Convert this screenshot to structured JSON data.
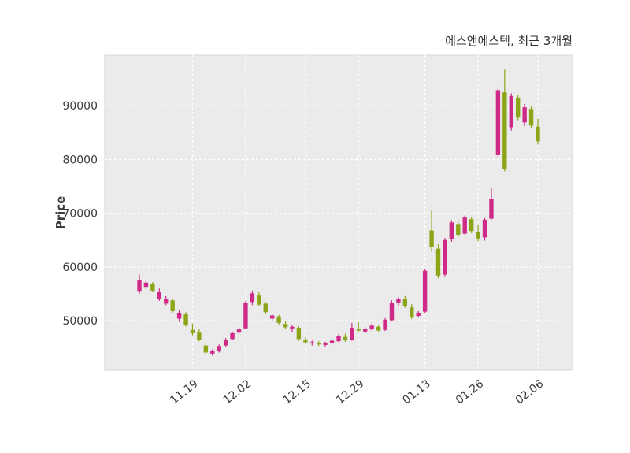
{
  "header": {
    "title": "에스앤에스텍, 최근 3개월"
  },
  "chart_data": {
    "type": "candlestick",
    "title": "에스앤에스텍, 최근 3개월",
    "ylabel": "Price",
    "xlabel": "",
    "yticks": [
      50000,
      60000,
      70000,
      80000,
      90000
    ],
    "ylim": [
      40800,
      99400
    ],
    "xtick_labels": [
      "11.19",
      "12.02",
      "12.15",
      "12.29",
      "01.13",
      "01.26",
      "02.06"
    ],
    "xtick_indices": [
      8,
      16,
      25,
      33,
      43,
      51,
      60
    ],
    "grid": true,
    "legend_position": "none",
    "colors": {
      "up": "#d02a88",
      "down": "#8aa617",
      "panel": "#ebebeb",
      "grid": "#ffffff",
      "text": "#3a3a3a",
      "border": "#d7d7d7"
    },
    "candles_format": [
      "open",
      "high",
      "low",
      "close"
    ],
    "candles": [
      [
        55400,
        58600,
        55000,
        57600
      ],
      [
        56300,
        57600,
        55900,
        57100
      ],
      [
        56900,
        57200,
        55300,
        55600
      ],
      [
        54000,
        56000,
        53700,
        55300
      ],
      [
        53200,
        54600,
        52900,
        54100
      ],
      [
        53800,
        54200,
        51500,
        51800
      ],
      [
        50400,
        52000,
        49800,
        51500
      ],
      [
        51300,
        51600,
        48900,
        49200
      ],
      [
        48300,
        49500,
        47300,
        47700
      ],
      [
        47800,
        48400,
        46200,
        46500
      ],
      [
        45400,
        46000,
        43800,
        44100
      ],
      [
        43900,
        44700,
        43500,
        44400
      ],
      [
        44300,
        45600,
        44100,
        45300
      ],
      [
        45400,
        46800,
        45200,
        46500
      ],
      [
        46600,
        48000,
        46400,
        47700
      ],
      [
        47800,
        48700,
        47500,
        48400
      ],
      [
        48600,
        53700,
        48400,
        53300
      ],
      [
        53500,
        55600,
        52900,
        55100
      ],
      [
        54700,
        55300,
        52700,
        53000
      ],
      [
        53200,
        53500,
        51300,
        51600
      ],
      [
        50400,
        51300,
        50000,
        51000
      ],
      [
        50800,
        51100,
        49300,
        49600
      ],
      [
        49400,
        50000,
        48500,
        48800
      ],
      [
        48600,
        49200,
        47900,
        48900
      ],
      [
        48700,
        49000,
        46300,
        46600
      ],
      [
        46400,
        46900,
        45700,
        46000
      ],
      [
        45800,
        46300,
        45400,
        46000
      ],
      [
        45900,
        46200,
        45300,
        45600
      ],
      [
        45500,
        46100,
        45200,
        45900
      ],
      [
        45800,
        46600,
        45600,
        46300
      ],
      [
        46200,
        47500,
        46000,
        47200
      ],
      [
        47000,
        47600,
        46100,
        46400
      ],
      [
        46500,
        49600,
        46300,
        48700
      ],
      [
        48500,
        49700,
        47900,
        48200
      ],
      [
        48000,
        48800,
        47700,
        48500
      ],
      [
        48400,
        49500,
        48200,
        49100
      ],
      [
        48900,
        49300,
        47900,
        48200
      ],
      [
        48300,
        50500,
        48100,
        50200
      ],
      [
        50100,
        53800,
        49900,
        53400
      ],
      [
        53300,
        54400,
        52800,
        54100
      ],
      [
        54000,
        54600,
        52400,
        52700
      ],
      [
        52500,
        53100,
        50300,
        50600
      ],
      [
        50900,
        51800,
        50600,
        51500
      ],
      [
        51700,
        59700,
        51500,
        59300
      ],
      [
        66800,
        70500,
        62800,
        63800
      ],
      [
        63400,
        64200,
        57900,
        58400
      ],
      [
        58600,
        65400,
        58300,
        65000
      ],
      [
        65200,
        68700,
        64700,
        68300
      ],
      [
        68000,
        68500,
        65600,
        66000
      ],
      [
        66200,
        69600,
        66000,
        69200
      ],
      [
        68900,
        69300,
        66300,
        66700
      ],
      [
        66500,
        67800,
        64800,
        65300
      ],
      [
        65500,
        69100,
        64900,
        68800
      ],
      [
        69000,
        74600,
        68800,
        72600
      ],
      [
        80800,
        93300,
        80300,
        92900
      ],
      [
        92500,
        96700,
        77800,
        78300
      ],
      [
        86000,
        92300,
        85400,
        91800
      ],
      [
        91500,
        92000,
        87300,
        87800
      ],
      [
        86900,
        90300,
        86200,
        89700
      ],
      [
        89400,
        89900,
        85800,
        86300
      ],
      [
        86100,
        87600,
        82800,
        83400
      ]
    ]
  }
}
